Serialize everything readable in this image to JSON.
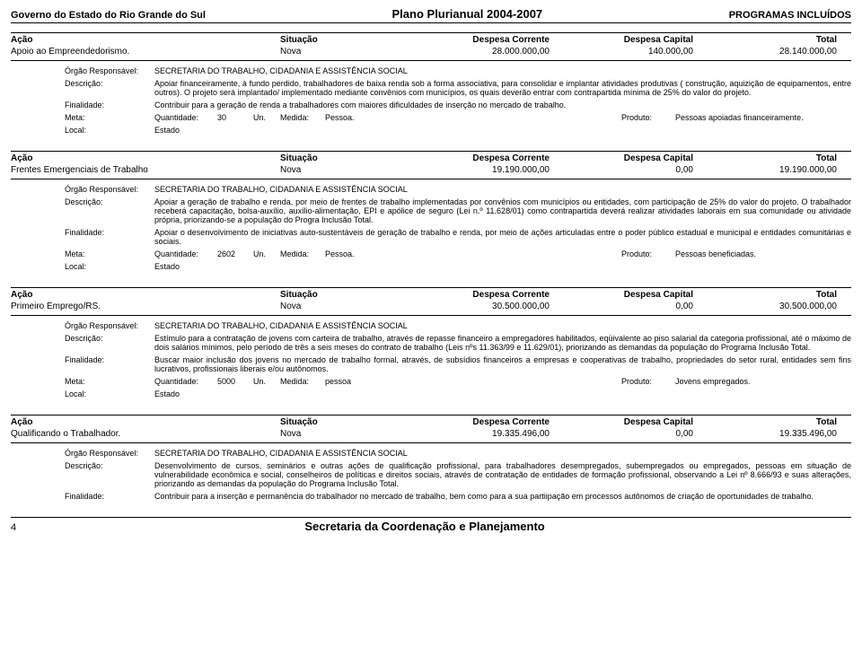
{
  "header": {
    "left": "Governo do Estado do Rio Grande do Sul",
    "center": "Plano Plurianual 2004-2007",
    "right": "PROGRAMAS INCLUÍDOS"
  },
  "col_labels": {
    "acao": "Ação",
    "situacao": "Situação",
    "corrente": "Despesa Corrente",
    "capital": "Despesa Capital",
    "total": "Total"
  },
  "field_labels": {
    "orgao": "Órgão Responsável:",
    "descricao": "Descrição:",
    "finalidade": "Finalidade:",
    "meta": "Meta:",
    "quantidade": "Quantidade:",
    "un": "Un.",
    "medida": "Medida:",
    "produto": "Produto:",
    "local": "Local:"
  },
  "actions": [
    {
      "name": "Apoio ao Empreendedorismo.",
      "situacao": "Nova",
      "corrente": "28.000.000,00",
      "capital": "140.000,00",
      "total": "28.140.000,00",
      "orgao": "SECRETARIA DO TRABALHO, CIDADANIA E ASSISTÊNCIA SOCIAL",
      "descricao": "Apoiar financeiramente, à fundo perdido, trabalhadores de baixa renda sob a forma associativa, para consolidar e implantar atividades produtivas ( construção, aquizição de equipamentos, entre outros). O projeto será implantado/ implementado mediante convênios com municípios, os quais deverão entrar com contrapartida mínima de 25% do valor do projeto.",
      "finalidade": "Contribuir para a geração de renda a trabalhadores com maiores dificuldades de inserção no mercado de trabalho.",
      "quantidade": "30",
      "medida": "Pessoa.",
      "produto": "Pessoas apoiadas financeiramente.",
      "local": "Estado"
    },
    {
      "name": "Frentes Emergenciais de Trabalho",
      "situacao": "Nova",
      "corrente": "19.190.000,00",
      "capital": "0,00",
      "total": "19.190.000,00",
      "orgao": "SECRETARIA DO TRABALHO, CIDADANIA E ASSISTÊNCIA SOCIAL",
      "descricao": "Apoiar a geração de trabalho e renda, por meio de frentes de trabalho implementadas por convênios com municípios ou entidades, com participação de 25% do valor do projeto. O trabalhador receberá capacitação, bolsa-auxílio, auxílio-alimentação, EPI e apólice de seguro (Lei n.º 11.628/01) como contrapartida deverá realizar atividades laborais em sua comunidade ou atividade própria, priorizando-se a população do Progra Inclusão Total.",
      "finalidade": "Apoiar o desenvolvimento de iniciativas auto-sustentáveis de geração de trabalho e renda, por meio de ações articuladas entre o poder público estadual e municipal e entidades comunitárias e sociais.",
      "quantidade": "2602",
      "medida": "Pessoa.",
      "produto": "Pessoas beneficiadas.",
      "local": "Estado"
    },
    {
      "name": "Primeiro Emprego/RS.",
      "situacao": "Nova",
      "corrente": "30.500.000,00",
      "capital": "0,00",
      "total": "30.500.000,00",
      "orgao": "SECRETARIA DO TRABALHO, CIDADANIA E ASSISTÊNCIA SOCIAL",
      "descricao": "Estímulo para a contratação de jovens com carteira de trabalho, através de repasse financeiro a empregadores habilitados, eqüivalente ao piso salarial da categoria profissional, até o máximo de dois salários mínimos, pelo período de três a seis meses do contrato de trabalho (Leis nºs 11.363/99 e 11.629/01), priorizando as demandas da população do Programa Inclusão Total.",
      "finalidade": "Buscar maior inclusão dos jovens no mercado de trabalho formal, através, de subsídios financeiros a empresas e cooperativas de trabalho, propriedades do setor rural, entidades sem fins lucrativos, profissionais liberais e/ou autônomos.",
      "quantidade": "5000",
      "medida": "pessoa",
      "produto": "Jovens empregados.",
      "local": "Estado"
    },
    {
      "name": "Qualificando o Trabalhador.",
      "situacao": "Nova",
      "corrente": "19.335.496,00",
      "capital": "0,00",
      "total": "19.335.496,00",
      "orgao": "SECRETARIA DO TRABALHO, CIDADANIA E ASSISTÊNCIA SOCIAL",
      "descricao": "Desenvolvimento de cursos, seminários e outras ações de qualificação profissional, para trabalhadores desempregados, subempregados ou empregados, pessoas em situação de vulnerabilidade econômica e social, conselheiros de políticas e direitos sociais, através de contratação de entidades de formação profissional, observando a Lei nº 8.666/93 e suas alterações, priorizando as demandas da população do Programa Inclusão Total.",
      "finalidade": "Contribuir para a inserção e permanência do trabalhador no mercado de trabalho, bem como para a sua partiipação em processos autônomos de criação de oportunidades de trabalho.",
      "quantidade": "",
      "medida": "",
      "produto": "",
      "local": ""
    }
  ],
  "footer": {
    "page": "4",
    "title": "Secretaria da Coordenação e Planejamento"
  }
}
